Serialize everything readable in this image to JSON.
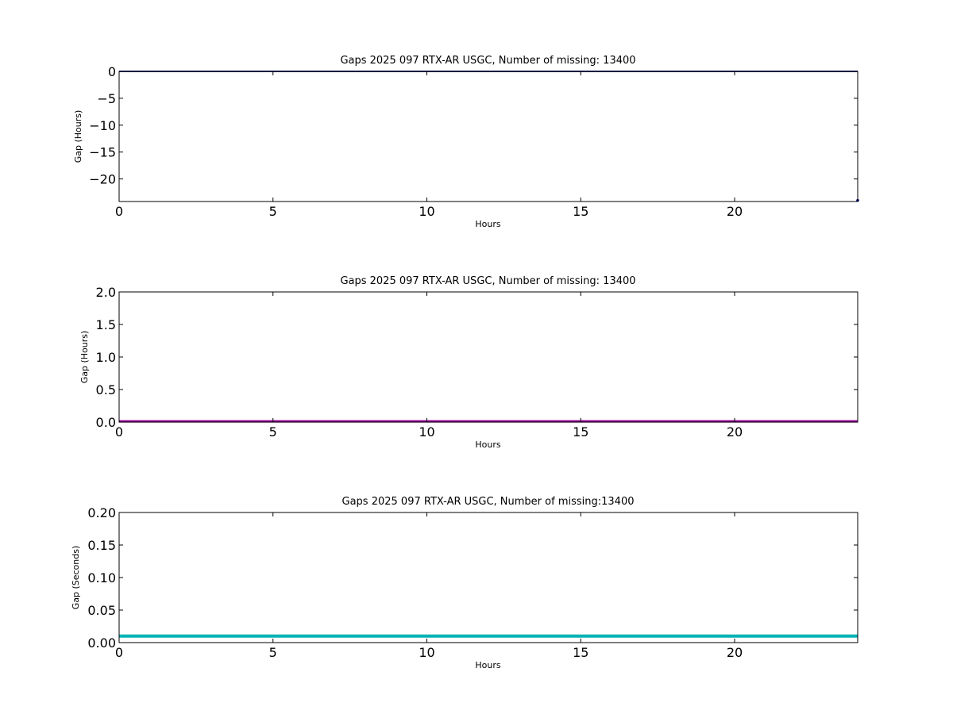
{
  "chart_data": [
    {
      "type": "line",
      "title": "Gaps 2025 097 RTX-AR  USGC, Number of missing: 13400",
      "xlabel": "Hours",
      "ylabel": "Gap (Hours)",
      "xlim": [
        0,
        24
      ],
      "ylim": [
        -24.2,
        0
      ],
      "xticks": [
        0,
        5,
        10,
        15,
        20
      ],
      "xtick_labels": [
        "0",
        "5",
        "10",
        "15",
        "20"
      ],
      "yticks": [
        0,
        -5,
        -10,
        -15,
        -20
      ],
      "ytick_labels": [
        "0",
        "−5",
        "−10",
        "−15",
        "−20"
      ],
      "grid": false,
      "series": [
        {
          "color": "#000080",
          "x": [
            0,
            24
          ],
          "y": [
            0,
            0
          ]
        }
      ],
      "points": [
        {
          "x": 24,
          "y": -24,
          "color": "#000080"
        }
      ]
    },
    {
      "type": "line",
      "title": "Gaps 2025 097 RTX-AR  USGC, Number of missing: 13400",
      "xlabel": "Hours",
      "ylabel": "Gap (Hours)",
      "xlim": [
        0,
        24
      ],
      "ylim": [
        0,
        2
      ],
      "xticks": [
        0,
        5,
        10,
        15,
        20
      ],
      "xtick_labels": [
        "0",
        "5",
        "10",
        "15",
        "20"
      ],
      "yticks": [
        0,
        0.5,
        1,
        1.5,
        2
      ],
      "ytick_labels": [
        "0.0",
        "0.5",
        "1.0",
        "1.5",
        "2.0"
      ],
      "grid": false,
      "series": [
        {
          "color": "#990099",
          "x": [
            0,
            24
          ],
          "y": [
            0.01,
            0.01
          ]
        }
      ]
    },
    {
      "type": "line",
      "title": "Gaps 2025 097 RTX-AR  USGC, Number of missing:13400",
      "xlabel": "Hours",
      "ylabel": "Gap (Seconds)",
      "xlim": [
        0,
        24
      ],
      "ylim": [
        0,
        0.2
      ],
      "xticks": [
        0,
        5,
        10,
        15,
        20
      ],
      "xtick_labels": [
        "0",
        "5",
        "10",
        "15",
        "20"
      ],
      "yticks": [
        0,
        0.05,
        0.1,
        0.15,
        0.2
      ],
      "ytick_labels": [
        "0.00",
        "0.05",
        "0.10",
        "0.15",
        "0.20"
      ],
      "grid": false,
      "series": [
        {
          "color": "#00b3b3",
          "x": [
            0,
            24
          ],
          "y": [
            0.01,
            0.01
          ]
        }
      ]
    }
  ]
}
